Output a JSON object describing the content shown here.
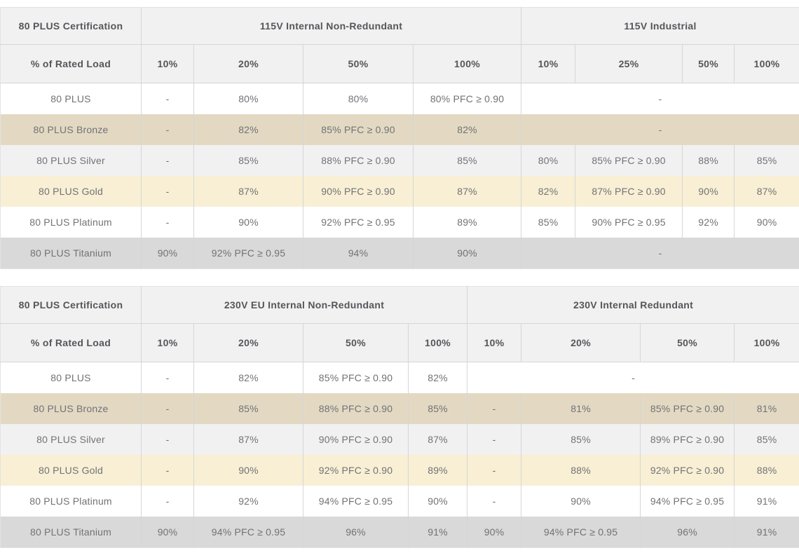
{
  "colors": {
    "page-bg": "#ffffff",
    "header-bg": "#f1f1f1",
    "row-plain": "#ffffff",
    "row-bronze": "#e3d9c3",
    "row-silver": "#f1f1f1",
    "row-gold": "#f8efd4",
    "row-titanium": "#d9d9d9",
    "grid-line": "#d6d6d6",
    "outer-line": "#e3e3e3",
    "header-text": "#55565a",
    "body-text": "#717276"
  },
  "table_115v": {
    "corner": "80 PLUS Certification",
    "load_header": "% of Rated Load",
    "group1": "115V Internal Non-Redundant",
    "group2": "115V Industrial",
    "loads": [
      "10%",
      "20%",
      "50%",
      "100%",
      "10%",
      "25%",
      "50%",
      "100%"
    ],
    "rows": [
      {
        "label": "80 PLUS",
        "c": [
          "-",
          "80%",
          "80%",
          "80% PFC ≥ 0.90"
        ],
        "m": "-"
      },
      {
        "label": "80 PLUS Bronze",
        "c": [
          "-",
          "82%",
          "85% PFC ≥ 0.90",
          "82%"
        ],
        "m": "-"
      },
      {
        "label": "80 PLUS Silver",
        "c": [
          "-",
          "85%",
          "88% PFC ≥ 0.90",
          "85%",
          "80%",
          "85% PFC ≥ 0.90",
          "88%",
          "85%"
        ]
      },
      {
        "label": "80 PLUS Gold",
        "c": [
          "-",
          "87%",
          "90% PFC ≥ 0.90",
          "87%",
          "82%",
          "87% PFC ≥ 0.90",
          "90%",
          "87%"
        ]
      },
      {
        "label": "80 PLUS Platinum",
        "c": [
          "-",
          "90%",
          "92% PFC ≥ 0.95",
          "89%",
          "85%",
          "90% PFC ≥ 0.95",
          "92%",
          "90%"
        ]
      },
      {
        "label": "80 PLUS Titanium",
        "c": [
          "90%",
          "92% PFC ≥ 0.95",
          "94%",
          "90%"
        ],
        "m": "-"
      }
    ]
  },
  "table_230v": {
    "corner": "80 PLUS Certification",
    "load_header": "% of Rated Load",
    "group1": "230V EU Internal Non-Redundant",
    "group2": "230V Internal Redundant",
    "loads": [
      "10%",
      "20%",
      "50%",
      "100%",
      "10%",
      "20%",
      "50%",
      "100%"
    ],
    "rows": [
      {
        "label": "80 PLUS",
        "c": [
          "-",
          "82%",
          "85% PFC ≥ 0.90",
          "82%"
        ],
        "m": "-"
      },
      {
        "label": "80 PLUS Bronze",
        "c": [
          "-",
          "85%",
          "88% PFC ≥ 0.90",
          "85%",
          "-",
          "81%",
          "85% PFC ≥ 0.90",
          "81%"
        ]
      },
      {
        "label": "80 PLUS Silver",
        "c": [
          "-",
          "87%",
          "90% PFC ≥ 0.90",
          "87%",
          "-",
          "85%",
          "89% PFC ≥ 0.90",
          "85%"
        ]
      },
      {
        "label": "80 PLUS Gold",
        "c": [
          "-",
          "90%",
          "92% PFC ≥ 0.90",
          "89%",
          "-",
          "88%",
          "92% PFC ≥ 0.90",
          "88%"
        ]
      },
      {
        "label": "80 PLUS Platinum",
        "c": [
          "-",
          "92%",
          "94% PFC ≥ 0.95",
          "90%",
          "-",
          "90%",
          "94% PFC ≥ 0.95",
          "91%"
        ]
      },
      {
        "label": "80 PLUS Titanium",
        "c": [
          "90%",
          "94% PFC ≥ 0.95",
          "96%",
          "91%",
          "90%",
          "94% PFC ≥ 0.95",
          "96%",
          "91%"
        ]
      }
    ]
  }
}
